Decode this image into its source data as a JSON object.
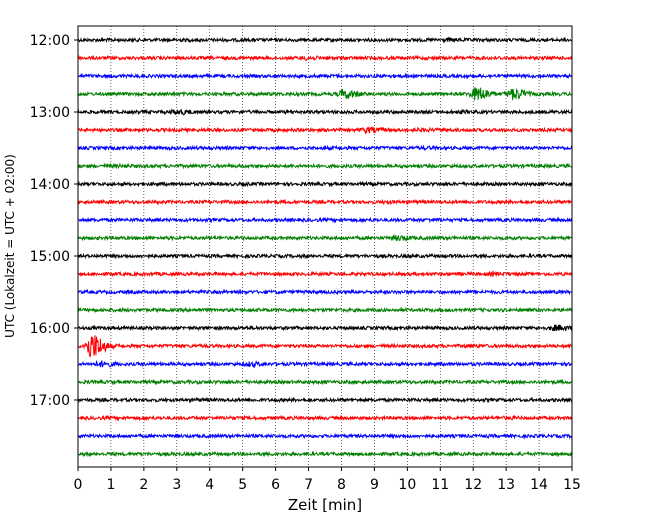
{
  "chart_data": {
    "type": "line",
    "title": "",
    "xlabel": "Zeit  [min]",
    "ylabel": "UTC (Lokalzeit = UTC + 02:00)",
    "xlim": [
      0,
      15
    ],
    "x_ticks": [
      0,
      1,
      2,
      3,
      4,
      5,
      6,
      7,
      8,
      9,
      10,
      11,
      12,
      13,
      14,
      15
    ],
    "x_grid": "dotted vertical lines at every minute",
    "y_ticks": [
      "12:00",
      "13:00",
      "14:00",
      "15:00",
      "16:00",
      "17:00"
    ],
    "trace_interval_minutes": 15,
    "start_time": "12:00",
    "color_cycle": [
      "#000000",
      "#ff0000",
      "#0000ff",
      "#008000"
    ],
    "traces": [
      {
        "start": "12:00",
        "color": "#000000",
        "events": [
          {
            "t": 11.2,
            "amp": 1.4
          },
          {
            "t": 3.1,
            "amp": 1.2
          }
        ]
      },
      {
        "start": "12:15",
        "color": "#ff0000",
        "events": [
          {
            "t": 6.9,
            "amp": 1.6
          },
          {
            "t": 12.5,
            "amp": 1.2
          }
        ]
      },
      {
        "start": "12:30",
        "color": "#0000ff",
        "events": [
          {
            "t": 9.5,
            "amp": 1.2
          }
        ]
      },
      {
        "start": "12:45",
        "color": "#008000",
        "events": [
          {
            "t": 8.1,
            "amp": 3.2
          },
          {
            "t": 12.1,
            "amp": 4.8
          },
          {
            "t": 13.2,
            "amp": 4.0
          }
        ]
      },
      {
        "start": "13:00",
        "color": "#000000",
        "events": [
          {
            "t": 3.0,
            "amp": 2.0
          },
          {
            "t": 11.6,
            "amp": 1.3
          }
        ]
      },
      {
        "start": "13:15",
        "color": "#ff0000",
        "events": [
          {
            "t": 8.8,
            "amp": 2.2
          },
          {
            "t": 10.4,
            "amp": 1.4
          }
        ]
      },
      {
        "start": "13:30",
        "color": "#0000ff",
        "events": [
          {
            "t": 10.6,
            "amp": 1.3
          }
        ]
      },
      {
        "start": "13:45",
        "color": "#008000",
        "events": [
          {
            "t": 1.1,
            "amp": 1.3
          }
        ]
      },
      {
        "start": "14:00",
        "color": "#000000",
        "events": [
          {
            "t": 5.0,
            "amp": 1.2
          }
        ]
      },
      {
        "start": "14:15",
        "color": "#ff0000",
        "events": [
          {
            "t": 9.4,
            "amp": 1.2
          }
        ]
      },
      {
        "start": "14:30",
        "color": "#0000ff",
        "events": [
          {
            "t": 10.7,
            "amp": 1.2
          }
        ]
      },
      {
        "start": "14:45",
        "color": "#008000",
        "events": [
          {
            "t": 9.7,
            "amp": 2.0
          }
        ]
      },
      {
        "start": "15:00",
        "color": "#000000",
        "events": []
      },
      {
        "start": "15:15",
        "color": "#ff0000",
        "events": [
          {
            "t": 12.6,
            "amp": 1.4
          },
          {
            "t": 5.5,
            "amp": 1.1
          }
        ]
      },
      {
        "start": "15:30",
        "color": "#0000ff",
        "events": []
      },
      {
        "start": "15:45",
        "color": "#008000",
        "events": [
          {
            "t": 1.1,
            "amp": 1.1
          }
        ]
      },
      {
        "start": "16:00",
        "color": "#000000",
        "events": [
          {
            "t": 14.5,
            "amp": 2.2
          },
          {
            "t": 5.2,
            "amp": 1.2
          }
        ]
      },
      {
        "start": "16:15",
        "color": "#ff0000",
        "events": [
          {
            "t": 0.4,
            "amp": 8.5
          },
          {
            "t": 11.8,
            "amp": 1.4
          }
        ]
      },
      {
        "start": "16:30",
        "color": "#0000ff",
        "events": [
          {
            "t": 0.7,
            "amp": 2.2
          },
          {
            "t": 5.2,
            "amp": 1.8
          }
        ]
      },
      {
        "start": "16:45",
        "color": "#008000",
        "events": []
      },
      {
        "start": "17:00",
        "color": "#000000",
        "events": [
          {
            "t": 3.6,
            "amp": 1.2
          }
        ]
      },
      {
        "start": "17:15",
        "color": "#ff0000",
        "events": [
          {
            "t": 4.7,
            "amp": 1.2
          },
          {
            "t": 13.0,
            "amp": 1.3
          }
        ]
      },
      {
        "start": "17:30",
        "color": "#0000ff",
        "events": []
      },
      {
        "start": "17:45",
        "color": "#008000",
        "events": []
      }
    ]
  }
}
